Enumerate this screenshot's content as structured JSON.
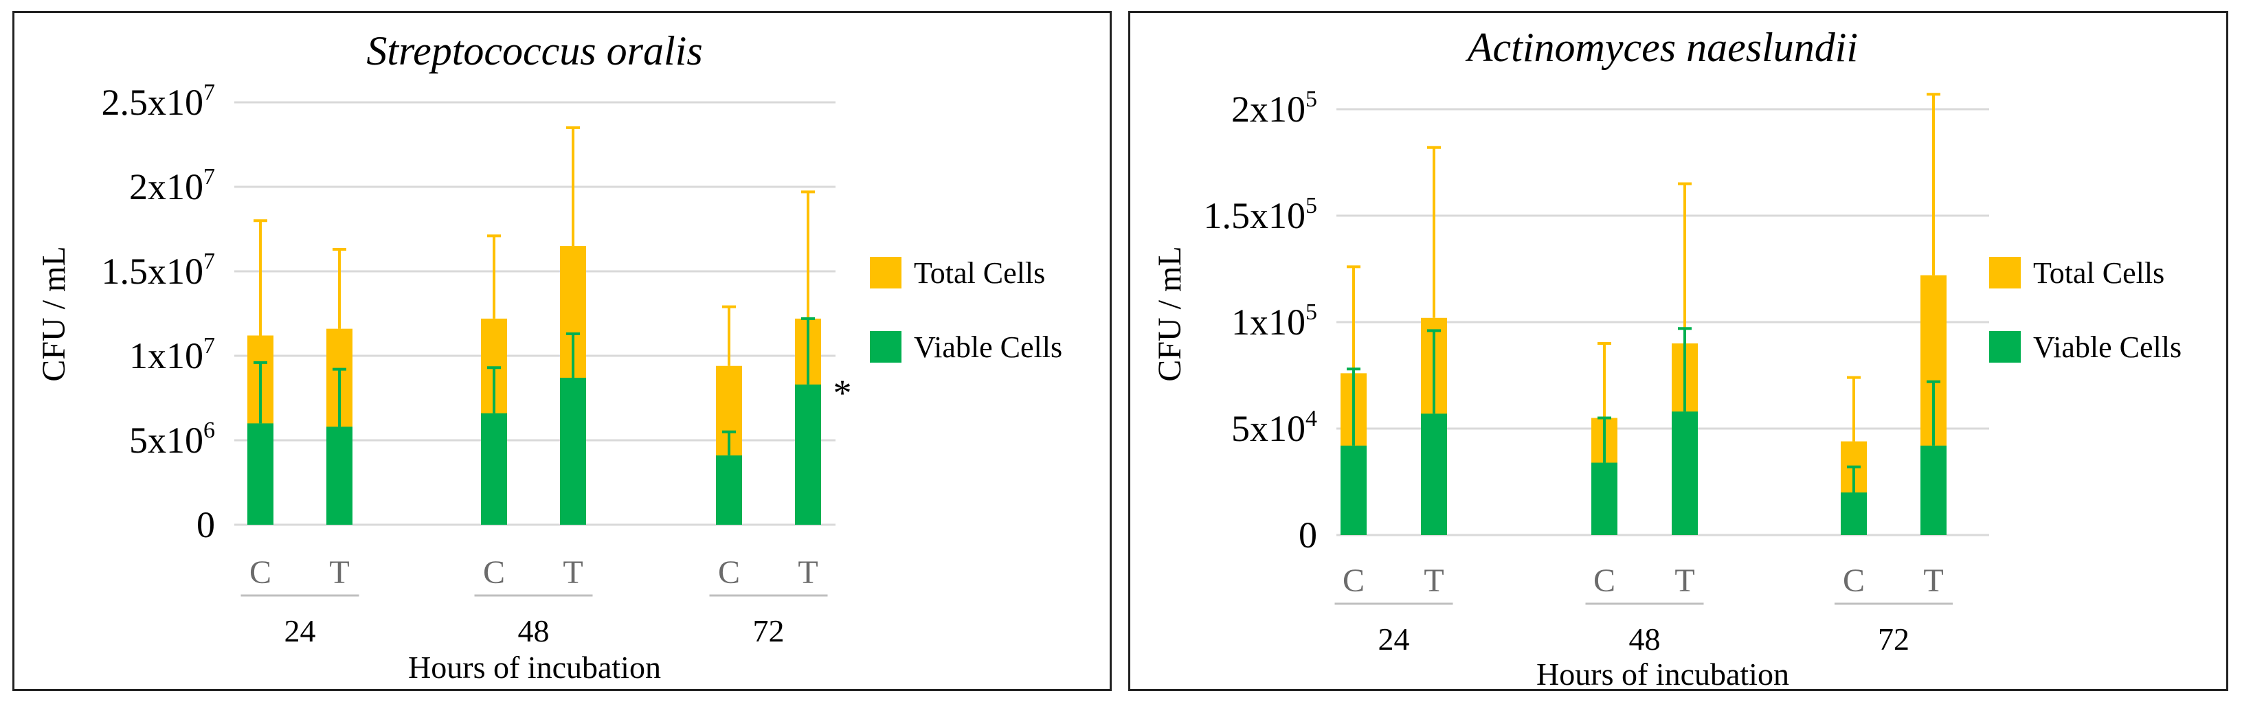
{
  "colors": {
    "total": "#FFC000",
    "viable": "#00B050",
    "grid": "#D9D9D9",
    "sep": "#BFBFBF"
  },
  "chart_data": [
    {
      "type": "bar",
      "title": "Streptococcus oralis",
      "ylabel": "CFU / mL",
      "xlabel": "Hours of incubation",
      "ylim": [
        0,
        25000000
      ],
      "yticks": [
        {
          "value": 0,
          "base": "0",
          "exp": ""
        },
        {
          "value": 5000000,
          "base": "5x10",
          "exp": "6"
        },
        {
          "value": 10000000,
          "base": "1x10",
          "exp": "7"
        },
        {
          "value": 15000000,
          "base": "1.5x10",
          "exp": "7"
        },
        {
          "value": 20000000,
          "base": "2x10",
          "exp": "7"
        },
        {
          "value": 25000000,
          "base": "2.5x10",
          "exp": "7"
        }
      ],
      "groups": [
        "24",
        "48",
        "72"
      ],
      "categories": [
        "C",
        "T",
        "C",
        "T",
        "C",
        "T"
      ],
      "legend": [
        "Total Cells",
        "Viable Cells"
      ],
      "series": [
        {
          "name": "Total Cells",
          "values": [
            11200000,
            11600000,
            12200000,
            16500000,
            9400000,
            12200000
          ],
          "errors": [
            6800000,
            4700000,
            4900000,
            7000000,
            3500000,
            7500000
          ]
        },
        {
          "name": "Viable Cells",
          "values": [
            6000000,
            5800000,
            6600000,
            8700000,
            4100000,
            8300000
          ],
          "errors": [
            3600000,
            3400000,
            2700000,
            2600000,
            1400000,
            3900000
          ]
        }
      ],
      "annotations": [
        {
          "category_index": 5,
          "text": "*"
        }
      ]
    },
    {
      "type": "bar",
      "title": "Actinomyces naeslundii",
      "ylabel": "CFU / mL",
      "xlabel": "Hours of incubation",
      "ylim": [
        0,
        200000
      ],
      "yticks": [
        {
          "value": 0,
          "base": "0",
          "exp": ""
        },
        {
          "value": 50000,
          "base": "5x10",
          "exp": "4"
        },
        {
          "value": 100000,
          "base": "1x10",
          "exp": "5"
        },
        {
          "value": 150000,
          "base": "1.5x10",
          "exp": "5"
        },
        {
          "value": 200000,
          "base": "2x10",
          "exp": "5"
        }
      ],
      "groups": [
        "24",
        "48",
        "72"
      ],
      "categories": [
        "C",
        "T",
        "C",
        "T",
        "C",
        "T"
      ],
      "legend": [
        "Total Cells",
        "Viable Cells"
      ],
      "series": [
        {
          "name": "Total Cells",
          "values": [
            76000,
            102000,
            55000,
            90000,
            44000,
            122000
          ],
          "errors": [
            50000,
            80000,
            35000,
            75000,
            30000,
            85000
          ]
        },
        {
          "name": "Viable Cells",
          "values": [
            42000,
            57000,
            34000,
            58000,
            20000,
            42000
          ],
          "errors": [
            36000,
            39000,
            21000,
            39000,
            12000,
            30000
          ]
        }
      ],
      "annotations": []
    }
  ]
}
